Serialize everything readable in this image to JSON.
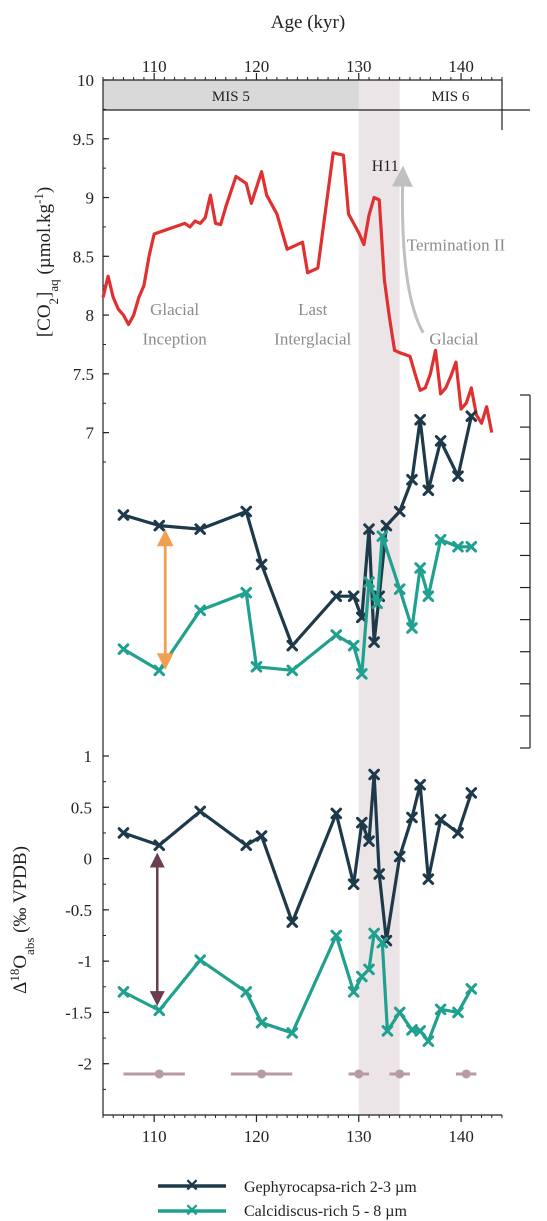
{
  "chart_data": {
    "type": "line",
    "xlabel": "Age (kyr)",
    "xlim": [
      105,
      144
    ],
    "x_ticks": [
      "110",
      "120",
      "130",
      "140"
    ],
    "stage_bar": {
      "labels": [
        "MIS 5",
        "MIS 6"
      ],
      "boundary": 130
    },
    "highlight": {
      "label": "H11",
      "range": [
        130,
        134
      ]
    },
    "panels": [
      {
        "id": "co2",
        "ylabel_main": "[CO",
        "ylabel_sub1": "2",
        "ylabel_close": "]",
        "ylabel_sub2": "aq",
        "ylabel_unit": " (µmol.kg",
        "ylabel_sup": "-1",
        "ylabel_end": ")",
        "ylim": [
          6.75,
          10
        ],
        "y_ticks": [
          "10",
          "9.5",
          "9",
          "8.5",
          "8",
          "7.5",
          "7"
        ],
        "annotations": [
          {
            "text": "Glacial",
            "x": 112,
            "y": 8.0
          },
          {
            "text": "Inception",
            "x": 112,
            "y": 7.75
          },
          {
            "text": "Last",
            "x": 125.5,
            "y": 8.0
          },
          {
            "text": "Interglacial",
            "x": 125.5,
            "y": 7.75
          },
          {
            "text": "Glacial",
            "x": 139.3,
            "y": 7.75
          },
          {
            "text": "Termination II",
            "x": 139.5,
            "y": 8.55
          }
        ],
        "series": [
          {
            "color": "#e03131",
            "x": [
              105.0,
              105.5,
              106.0,
              106.5,
              107.0,
              107.5,
              108.0,
              108.5,
              109.0,
              109.5,
              110.0,
              111.0,
              112.0,
              113.0,
              113.5,
              114.0,
              114.5,
              115.0,
              115.5,
              116.0,
              116.5,
              117.0,
              118.0,
              119.0,
              119.5,
              120.5,
              121.0,
              122.0,
              123.0,
              123.5,
              124.5,
              125.0,
              126.0,
              127.5,
              128.5,
              129.0,
              129.5,
              130.0,
              130.5,
              131.0,
              131.5,
              132.0,
              132.5,
              133.0,
              133.5,
              134.0,
              135.0,
              135.5,
              136.0,
              136.5,
              137.0,
              137.5,
              138.0,
              138.5,
              139.0,
              139.5,
              140.0,
              140.5,
              141.0,
              141.5,
              142.0,
              142.5,
              143.0
            ],
            "y": [
              8.15,
              8.33,
              8.15,
              8.05,
              8.0,
              7.92,
              8.0,
              8.15,
              8.25,
              8.5,
              8.69,
              8.72,
              8.75,
              8.78,
              8.75,
              8.8,
              8.78,
              8.83,
              9.02,
              8.78,
              8.77,
              8.92,
              9.18,
              9.12,
              8.95,
              9.22,
              9.02,
              8.86,
              8.56,
              8.58,
              8.62,
              8.36,
              8.4,
              9.38,
              9.36,
              8.86,
              8.78,
              8.7,
              8.6,
              8.85,
              9.0,
              8.98,
              8.3,
              7.98,
              7.7,
              7.68,
              7.65,
              7.5,
              7.36,
              7.38,
              7.5,
              7.7,
              7.33,
              7.38,
              7.48,
              7.6,
              7.2,
              7.25,
              7.38,
              7.15,
              7.08,
              7.22,
              7.0
            ]
          }
        ]
      },
      {
        "id": "middle",
        "ylim": [
          0,
          10
        ],
        "tick_count": 12,
        "series": [
          {
            "name": "Gephyrocapsa-rich 2-3 µm",
            "color": "#1e3a4a",
            "x": [
              107.0,
              110.5,
              114.5,
              119.0,
              120.5,
              123.5,
              127.8,
              129.5,
              130.3,
              131.0,
              131.5,
              132.0,
              132.7,
              134.0,
              135.2,
              136.0,
              136.8,
              138.0,
              139.7,
              141.0
            ],
            "y": [
              6.6,
              6.3,
              6.2,
              6.7,
              5.2,
              2.9,
              4.3,
              4.3,
              3.7,
              6.2,
              3.0,
              4.3,
              6.3,
              6.7,
              7.6,
              9.3,
              7.3,
              8.7,
              7.7,
              9.4
            ]
          },
          {
            "name": "Calcidiscus-rich 5 - 8 µm",
            "color": "#20a08e",
            "x": [
              107.0,
              110.5,
              114.5,
              119.0,
              120.0,
              123.5,
              127.8,
              129.5,
              130.3,
              131.0,
              131.8,
              132.3,
              134.0,
              135.2,
              136.0,
              136.8,
              138.0,
              139.7,
              141.0
            ],
            "y": [
              2.8,
              2.2,
              3.9,
              4.4,
              2.3,
              2.2,
              3.2,
              2.9,
              2.1,
              4.7,
              4.1,
              6.0,
              4.5,
              3.4,
              5.1,
              4.3,
              5.9,
              5.7,
              5.7
            ]
          }
        ],
        "arrow": {
          "color": "#f0a050",
          "x": 110.5,
          "y1": 6.0,
          "y2": 2.4
        }
      },
      {
        "id": "d18o",
        "ylabel_main": "Δ",
        "ylabel_sup": "18",
        "ylabel_o": "O",
        "ylabel_sub": "abs",
        "ylabel_unit": " (‰ VPDB)",
        "ylim": [
          -2.5,
          1
        ],
        "y_ticks": [
          "1",
          "0.5",
          "0",
          "-0.5",
          "-1",
          "-1.5",
          "-2"
        ],
        "series": [
          {
            "name": "Gephyrocapsa-rich 2-3 µm",
            "color": "#1e3a4a",
            "x": [
              107.0,
              110.5,
              114.5,
              119.0,
              120.5,
              123.5,
              127.8,
              129.5,
              130.3,
              131.0,
              131.5,
              132.0,
              132.7,
              134.0,
              135.2,
              136.0,
              136.8,
              138.0,
              139.7,
              141.0
            ],
            "y": [
              0.25,
              0.13,
              0.46,
              0.13,
              0.22,
              -0.62,
              0.44,
              -0.25,
              0.35,
              0.17,
              0.82,
              -0.15,
              -0.8,
              0.02,
              0.4,
              0.72,
              -0.2,
              0.38,
              0.25,
              0.64
            ]
          },
          {
            "name": "Calcidiscus-rich 5 - 8 µm",
            "color": "#20a08e",
            "x": [
              107.0,
              110.5,
              114.5,
              119.0,
              120.5,
              123.5,
              127.8,
              129.5,
              130.3,
              131.0,
              131.5,
              132.3,
              132.8,
              134.0,
              135.2,
              136.0,
              136.8,
              138.0,
              139.7,
              141.0
            ],
            "y": [
              -1.3,
              -1.48,
              -0.99,
              -1.3,
              -1.6,
              -1.7,
              -0.75,
              -1.3,
              -1.15,
              -1.08,
              -0.73,
              -0.82,
              -1.68,
              -1.5,
              -1.67,
              -1.68,
              -1.78,
              -1.47,
              -1.5,
              -1.27
            ]
          }
        ],
        "arrow": {
          "color": "#6a3d50",
          "x": 110.5,
          "y1": 0.0,
          "y2": -1.38
        },
        "error_bars": {
          "color": "#b89aa5",
          "items": [
            {
              "x": 110.5,
              "x0": 107.0,
              "x1": 113.0,
              "y": -2.1
            },
            {
              "x": 120.5,
              "x0": 117.5,
              "x1": 123.5,
              "y": -2.1
            },
            {
              "x": 130.0,
              "x0": 129.0,
              "x1": 131.0,
              "y": -2.1
            },
            {
              "x": 134.0,
              "x0": 133.0,
              "x1": 135.0,
              "y": -2.1
            },
            {
              "x": 140.5,
              "x0": 139.5,
              "x1": 141.5,
              "y": -2.1
            }
          ]
        }
      }
    ],
    "legend": {
      "placement": "bottom",
      "entries": [
        {
          "label": "Gephyrocapsa-rich 2-3 µm",
          "color": "#1e3a4a"
        },
        {
          "label": "Calcidiscus-rich 5 - 8 µm",
          "color": "#20a08e"
        }
      ]
    }
  }
}
